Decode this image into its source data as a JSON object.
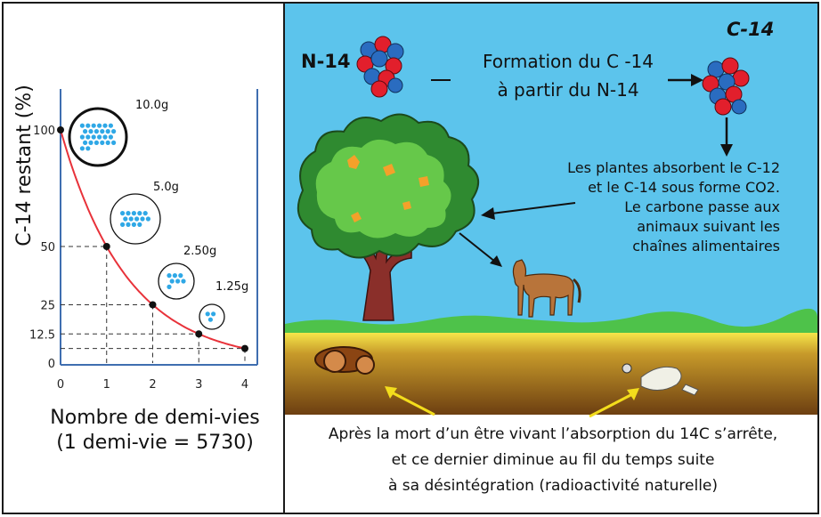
{
  "chart_data": {
    "type": "line",
    "ylabel": "C-14 restant (%)",
    "xlabel": "Nombre de demi-vies",
    "xlabel_note": "(1 demi-vie = 5730)",
    "x": [
      0,
      1,
      2,
      3,
      4
    ],
    "x_ticks": [
      "0",
      "1",
      "2",
      "3",
      "4"
    ],
    "y_ticks": [
      "0",
      "12.5",
      "25",
      "50",
      "100"
    ],
    "y_tick_values": [
      0,
      12.5,
      25,
      50,
      100
    ],
    "values": [
      100,
      50,
      25,
      12.5,
      6.25
    ],
    "xlim": [
      0,
      4
    ],
    "ylim": [
      0,
      100
    ],
    "line_color": "#e8323a",
    "sample_labels": [
      "10.0g",
      "5.0g",
      "2.50g",
      "1.25g"
    ],
    "sample_dot_counts": [
      26,
      14,
      7,
      3
    ],
    "grid": false
  },
  "diagram": {
    "n14_label": "N-14",
    "c14_label": "C-14",
    "formation_line1": "Formation du C -14",
    "formation_line2": "à partir du N-14",
    "plants_lines": [
      "Les plantes absorbent le C-12",
      "et le C-14 sous forme CO2.",
      "Le carbone passe aux",
      "animaux suivant les",
      "chaînes alimentaires"
    ],
    "death_lines": [
      "Après la mort d’un être vivant l’absorption du 14C s’arrête,",
      "et ce dernier diminue au fil du temps suite",
      "à sa désintégration (radioactivité naturelle)"
    ],
    "colors": {
      "sky": "#5cc4ec",
      "grass": "#4ec24a",
      "soil_top": "#f3e04a",
      "soil_bottom": "#6a3c10",
      "proton": "#e21f2c",
      "neutron": "#2a6cc0",
      "arrow_yellow": "#f3dd1c"
    }
  }
}
